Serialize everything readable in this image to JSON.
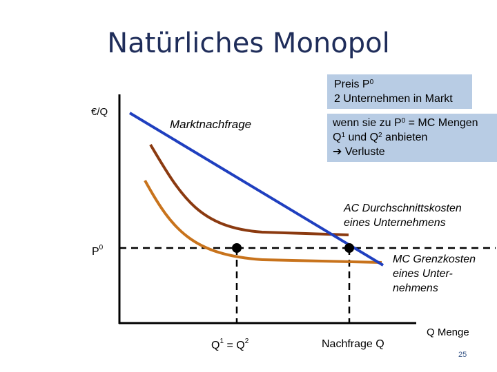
{
  "title": "Natürliches Monopol",
  "info_box_1": {
    "line1_base": "Preis P",
    "line1_sup": "0",
    "line2": "2 Unternehmen in Markt"
  },
  "info_box_2": {
    "line1_base": "wenn sie zu P",
    "line1_sup": "0",
    "line1_tail": " = MC Mengen",
    "line2_a": "Q",
    "line2_sup1": "1",
    "line2_b": " und Q",
    "line2_sup2": "2",
    "line2_c": " anbieten",
    "line3_arrow": "➔",
    "line3_text": " Verluste"
  },
  "y_axis_label": "€/Q",
  "demand_label": "Marktnachfrage",
  "ac_label": {
    "line1": "AC Durchschnittskosten",
    "line2": "eines Unternehmens"
  },
  "mc_label": {
    "line1": "MC Grenzkosten",
    "line2": "eines Unter-",
    "line3": "nehmens"
  },
  "p0_label": {
    "base": "P",
    "sup": "0"
  },
  "q_label": {
    "a": "Q",
    "sup1": "1",
    "mid": " = Q",
    "sup2": "2"
  },
  "demand_q_label": "Nachfrage Q",
  "x_axis_label": "Q Menge",
  "page_number": "25",
  "colors": {
    "title": "#1f2d5a",
    "info_box": "#b8cce4",
    "demand": "#1f3fbf",
    "ac": "#8b3a10",
    "mc": "#c8731c"
  }
}
